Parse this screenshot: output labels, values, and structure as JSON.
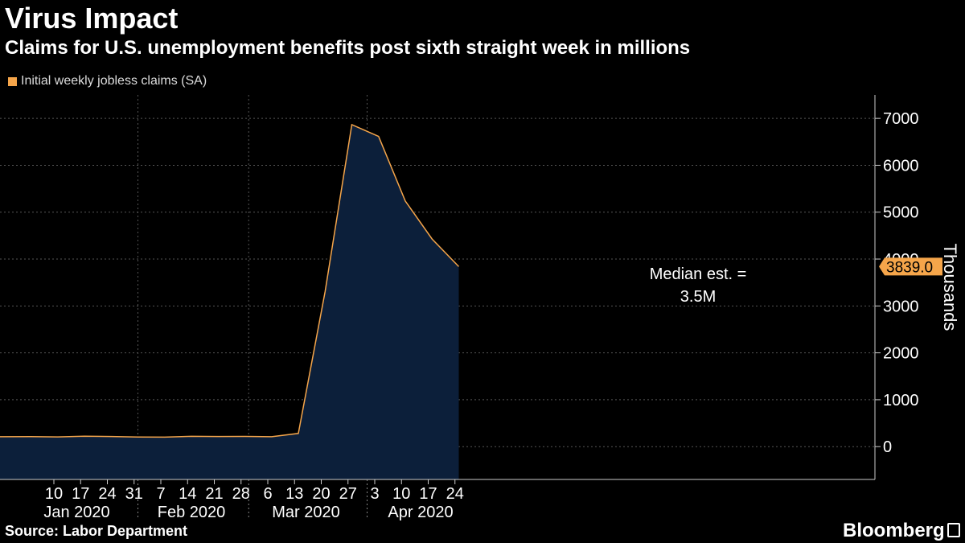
{
  "header": {
    "title": "Virus Impact",
    "subtitle": "Claims for U.S. unemployment benefits post sixth straight week in millions"
  },
  "footer": {
    "source": "Source: Labor Department",
    "brand": "Bloomberg"
  },
  "colors": {
    "background": "#000000",
    "area_fill": "#0c1f3a",
    "line": "#f5a54a",
    "grid": "#555555",
    "last_value_badge": "#f5a54a"
  },
  "chart_data": {
    "type": "area",
    "title": "Virus Impact",
    "subtitle": "Claims for U.S. unemployment benefits post sixth straight week in millions",
    "ylabel": "Thousands",
    "ylim": [
      -700,
      7500
    ],
    "yticks": [
      0,
      1000,
      2000,
      3000,
      4000,
      5000,
      6000,
      7000
    ],
    "grid": true,
    "legend_position": "top-left",
    "x_day_ticks": [
      "10",
      "17",
      "24",
      "31",
      "7",
      "14",
      "21",
      "28",
      "6",
      "13",
      "20",
      "27",
      "3",
      "10",
      "17",
      "24"
    ],
    "x_month_labels": [
      "Jan 2020",
      "Feb 2020",
      "Mar 2020",
      "Apr 2020"
    ],
    "series": [
      {
        "name": "Initial weekly jobless claims (SA)",
        "x": [
          "2020-01-04",
          "2020-01-11",
          "2020-01-18",
          "2020-01-25",
          "2020-02-01",
          "2020-02-08",
          "2020-02-15",
          "2020-02-22",
          "2020-02-29",
          "2020-03-07",
          "2020-03-14",
          "2020-03-21",
          "2020-03-28",
          "2020-04-04",
          "2020-04-11",
          "2020-04-18"
        ],
        "values": [
          212,
          207,
          223,
          216,
          205,
          203,
          220,
          216,
          218,
          211,
          282,
          3307,
          6867,
          6615,
          5237,
          4427
        ]
      }
    ],
    "last_value": 3839.0,
    "last_value_label": "3839.0",
    "latest_point": {
      "x": "2020-04-25",
      "value": 3839
    },
    "annotation": {
      "line1": "Median est. =",
      "line2": "3.5M"
    }
  }
}
